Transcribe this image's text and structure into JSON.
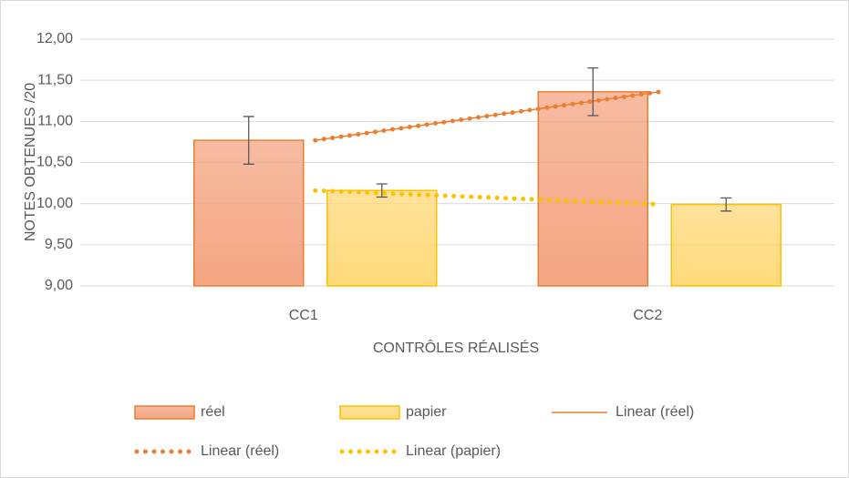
{
  "chart_data": {
    "type": "bar",
    "x_label": "CONTRÔLES RÉALISÉS",
    "y_label": "NOTES OBTENUES /20",
    "categories": [
      "CC1",
      "CC2"
    ],
    "series": [
      {
        "name": "réel",
        "color": "#f4a582",
        "border": "#ed7d31",
        "values": [
          10.77,
          11.36
        ],
        "errors": [
          0.29,
          0.29
        ]
      },
      {
        "name": "papier",
        "color": "#ffd97a",
        "border": "#ffc000",
        "values": [
          10.16,
          9.99
        ],
        "errors": [
          0.08,
          0.08
        ]
      }
    ],
    "trendlines": [
      {
        "name": "Linear (réel)",
        "of": "réel",
        "color": "#ed7d31",
        "style": "solid"
      },
      {
        "name": "Linear (réel)",
        "of": "réel",
        "color": "#ed7d31",
        "style": "dotted"
      },
      {
        "name": "Linear (papier)",
        "of": "papier",
        "color": "#ffc000",
        "style": "dotted"
      }
    ],
    "ylim": [
      9,
      12
    ],
    "yticks": [
      {
        "value": 9,
        "label": "9,00"
      },
      {
        "value": 9.5,
        "label": "9,50"
      },
      {
        "value": 10,
        "label": "10,00"
      },
      {
        "value": 10.5,
        "label": "10,50"
      },
      {
        "value": 11,
        "label": "11,00"
      },
      {
        "value": 11.5,
        "label": "11,50"
      },
      {
        "value": 12,
        "label": "12,00"
      }
    ],
    "grid": true,
    "legend": "bottom"
  }
}
